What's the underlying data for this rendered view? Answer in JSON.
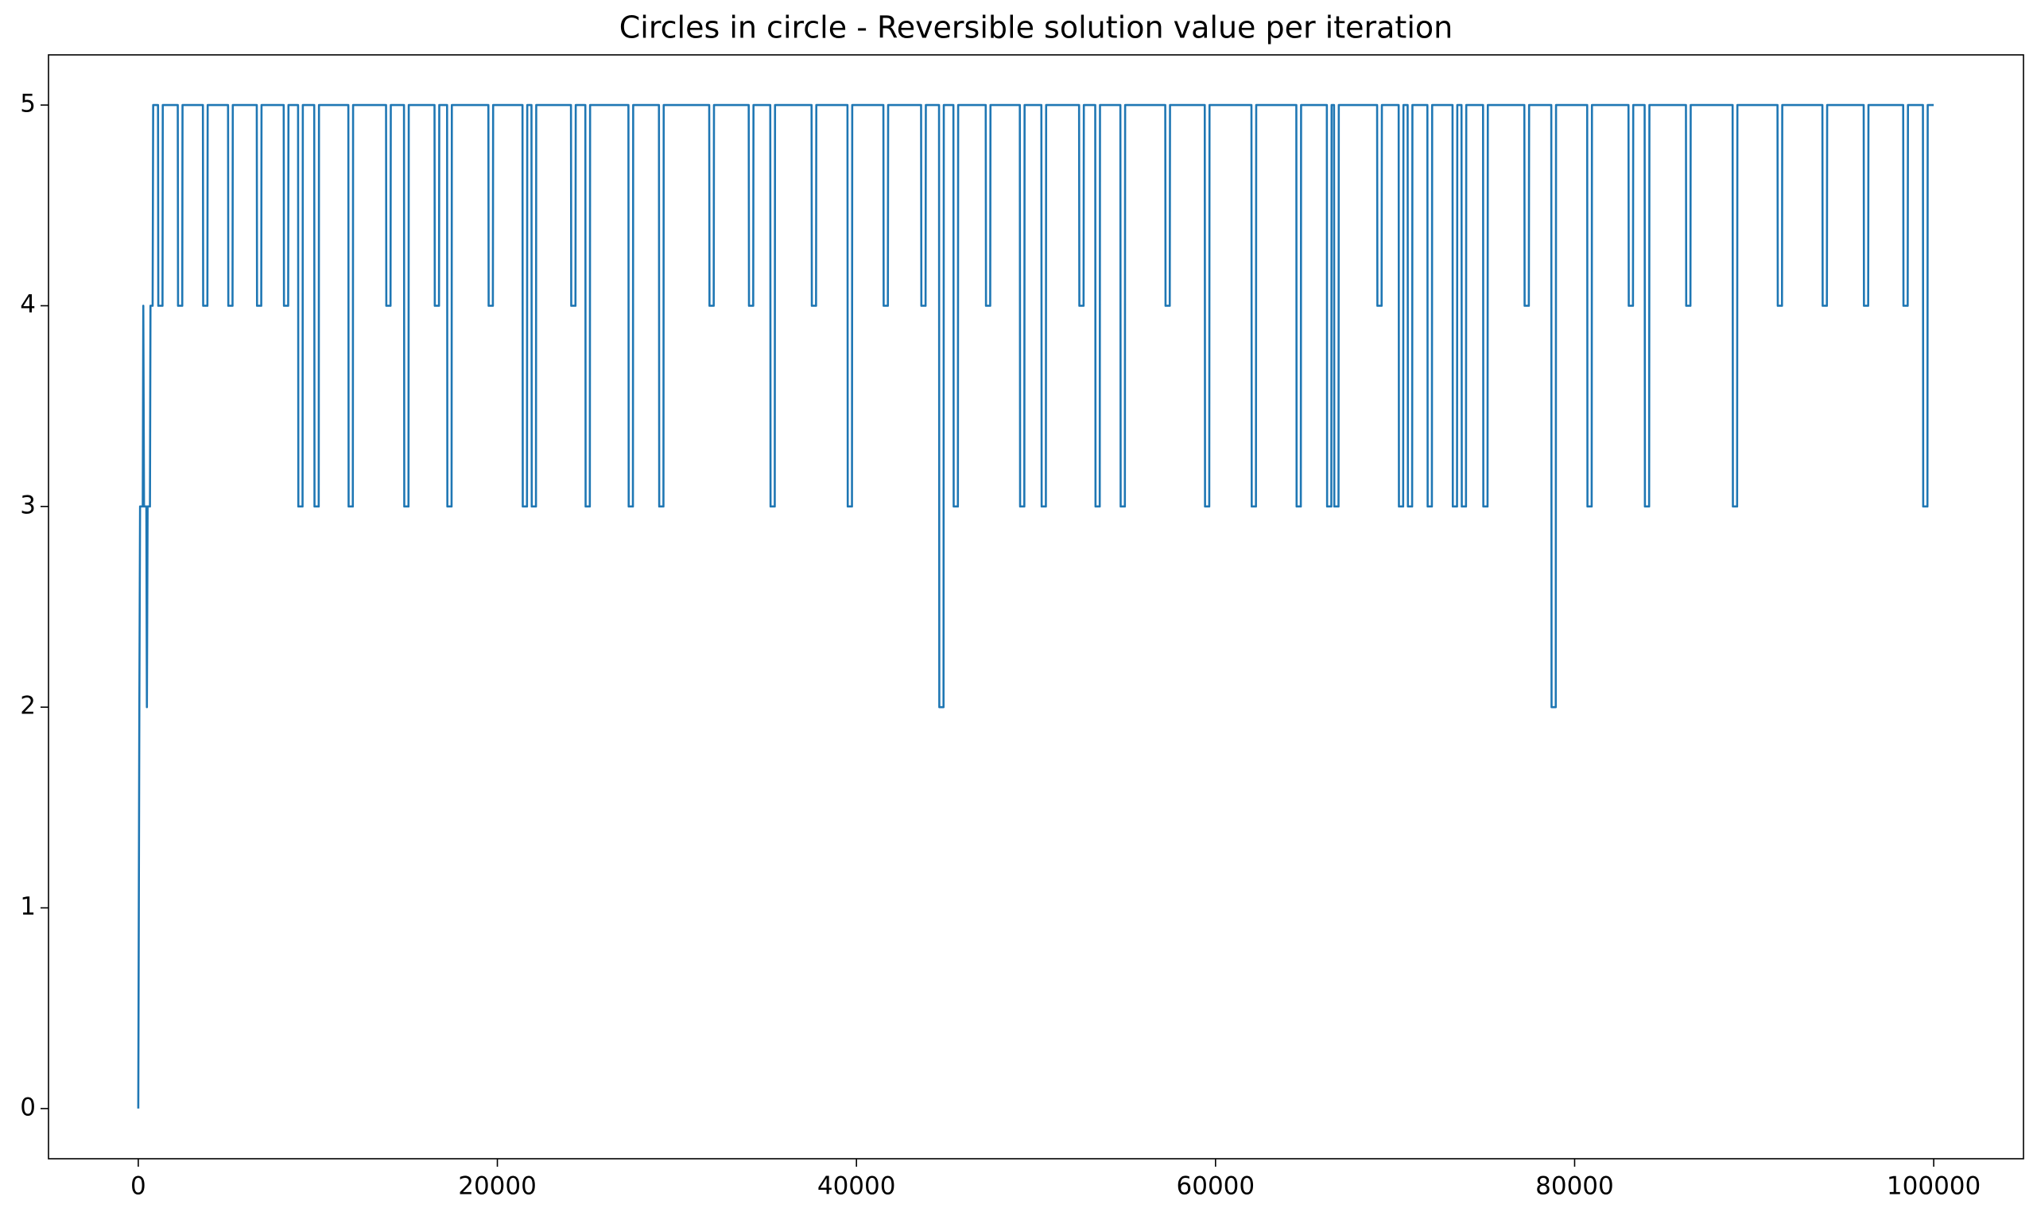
{
  "chart_data": {
    "type": "line",
    "title": "Circles in circle - Reversible solution value per iteration",
    "color": "#1f77b4",
    "xlim": [
      -5000,
      105000
    ],
    "xticks": [
      0,
      20000,
      40000,
      60000,
      80000,
      100000
    ],
    "ylim": [
      -0.25,
      5.25
    ],
    "yticks": [
      0,
      1,
      2,
      3,
      4,
      5
    ],
    "grid": false,
    "x": [
      0,
      60,
      100,
      250,
      280,
      320,
      450,
      480,
      520,
      650,
      680,
      800,
      830,
      1100,
      1115,
      1350,
      1365,
      2200,
      2215,
      2450,
      2465,
      3600,
      3615,
      3850,
      3865,
      5000,
      5015,
      5250,
      5265,
      6600,
      6615,
      6850,
      6865,
      8100,
      8115,
      8350,
      8365,
      8900,
      8915,
      9150,
      9165,
      9800,
      9815,
      10050,
      10065,
      11700,
      11715,
      11950,
      11965,
      13800,
      13815,
      14050,
      14065,
      14800,
      14815,
      15050,
      15065,
      16500,
      16515,
      16750,
      16765,
      17200,
      17215,
      17450,
      17465,
      19500,
      19515,
      19750,
      19765,
      21400,
      21415,
      21650,
      21665,
      21900,
      21915,
      22150,
      22165,
      24100,
      24115,
      24350,
      24365,
      24900,
      24915,
      25150,
      25165,
      27300,
      27315,
      27550,
      27565,
      29000,
      29015,
      29250,
      29265,
      31800,
      31815,
      32050,
      32065,
      34000,
      34015,
      34250,
      34265,
      35200,
      35215,
      35450,
      35465,
      37500,
      37515,
      37750,
      37765,
      39500,
      39515,
      39750,
      39765,
      41500,
      41515,
      41750,
      41765,
      43600,
      43615,
      43850,
      43865,
      44600,
      44615,
      44850,
      44865,
      45400,
      45415,
      45650,
      45665,
      47200,
      47215,
      47450,
      47465,
      49100,
      49115,
      49350,
      49365,
      50300,
      50315,
      50550,
      50565,
      52400,
      52415,
      52650,
      52665,
      53300,
      53315,
      53550,
      53565,
      54700,
      54715,
      54950,
      54965,
      57200,
      57215,
      57450,
      57465,
      59400,
      59415,
      59650,
      59665,
      62000,
      62015,
      62250,
      62265,
      64500,
      64515,
      64750,
      64765,
      66200,
      66215,
      66450,
      66465,
      66600,
      66615,
      66850,
      66865,
      69000,
      69015,
      69250,
      69265,
      70200,
      70215,
      70450,
      70465,
      70700,
      70715,
      70950,
      70965,
      71800,
      71815,
      72050,
      72065,
      73200,
      73215,
      73450,
      73465,
      73700,
      73715,
      73950,
      73965,
      74900,
      74915,
      75150,
      75165,
      77200,
      77215,
      77450,
      77465,
      78700,
      78715,
      78950,
      78965,
      80700,
      80715,
      80950,
      80965,
      83000,
      83015,
      83250,
      83265,
      83900,
      83915,
      84150,
      84165,
      86200,
      86215,
      86450,
      86465,
      88800,
      88815,
      89050,
      89065,
      91300,
      91315,
      91550,
      91565,
      93800,
      93815,
      94050,
      94065,
      96100,
      96115,
      96350,
      96365,
      98300,
      98315,
      98550,
      98565,
      99400,
      99415,
      99650,
      99665,
      100000
    ],
    "values": [
      0,
      2,
      3,
      3,
      4,
      3,
      3,
      2,
      3,
      3,
      4,
      4,
      5,
      5,
      4,
      4,
      5,
      5,
      4,
      4,
      5,
      5,
      4,
      4,
      5,
      5,
      4,
      4,
      5,
      5,
      4,
      4,
      5,
      5,
      4,
      4,
      5,
      5,
      3,
      3,
      5,
      5,
      3,
      3,
      5,
      5,
      3,
      3,
      5,
      5,
      4,
      4,
      5,
      5,
      3,
      3,
      5,
      5,
      4,
      4,
      5,
      5,
      3,
      3,
      5,
      5,
      4,
      4,
      5,
      5,
      3,
      3,
      5,
      5,
      3,
      3,
      5,
      5,
      4,
      4,
      5,
      5,
      3,
      3,
      5,
      5,
      3,
      3,
      5,
      5,
      3,
      3,
      5,
      5,
      4,
      4,
      5,
      5,
      4,
      4,
      5,
      5,
      3,
      3,
      5,
      5,
      4,
      4,
      5,
      5,
      3,
      3,
      5,
      5,
      4,
      4,
      5,
      5,
      4,
      4,
      5,
      5,
      2,
      2,
      5,
      5,
      3,
      3,
      5,
      5,
      4,
      4,
      5,
      5,
      3,
      3,
      5,
      5,
      3,
      3,
      5,
      5,
      4,
      4,
      5,
      5,
      3,
      3,
      5,
      5,
      3,
      3,
      5,
      5,
      4,
      4,
      5,
      5,
      3,
      3,
      5,
      5,
      3,
      3,
      5,
      5,
      3,
      3,
      5,
      5,
      3,
      3,
      5,
      5,
      3,
      3,
      5,
      5,
      4,
      4,
      5,
      5,
      3,
      3,
      5,
      5,
      3,
      3,
      5,
      5,
      3,
      3,
      5,
      5,
      3,
      3,
      5,
      5,
      3,
      3,
      5,
      5,
      3,
      3,
      5,
      5,
      4,
      4,
      5,
      5,
      2,
      2,
      5,
      5,
      3,
      3,
      5,
      5,
      4,
      4,
      5,
      5,
      3,
      3,
      5,
      5,
      4,
      4,
      5,
      5,
      3,
      3,
      5,
      5,
      4,
      4,
      5,
      5,
      4,
      4,
      5,
      5,
      4,
      4,
      5,
      5,
      4,
      4,
      5,
      5,
      3,
      3,
      5,
      5
    ]
  }
}
